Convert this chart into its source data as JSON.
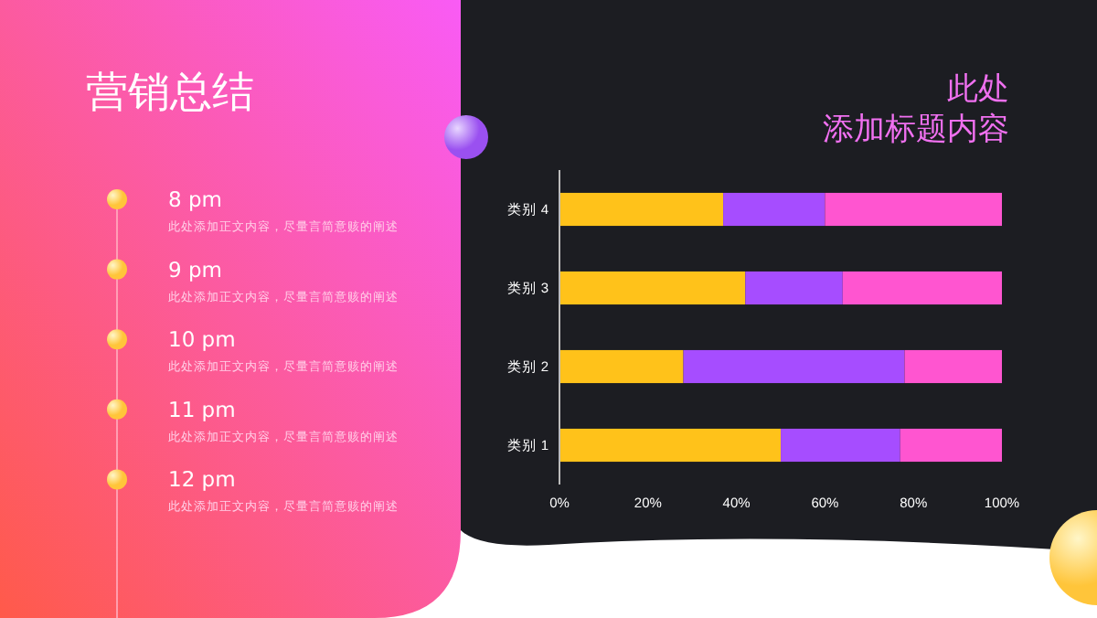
{
  "chart_data": {
    "type": "bar",
    "orientation": "horizontal",
    "stacked": true,
    "title": "此处",
    "subtitle": "添加标题内容",
    "annotations": [
      "营销总结",
      "8 pm",
      "此处添加正文内容，尽量言简意赅的阐述",
      "9 pm",
      "此处添加正文内容，尽量言简意赅的阐述",
      "10 pm",
      "此处添加正文内容，尽量言简意赅的阐述",
      "11 pm",
      "此处添加正文内容，尽量言简意赅的阐述",
      "12 pm",
      "此处添加正文内容，尽量言简意赅的阐述"
    ],
    "categories": [
      "类别 4",
      "类别 3",
      "类别 2",
      "类别 1"
    ],
    "series": [
      {
        "color": "#ffc21a",
        "values": [
          37,
          42,
          28,
          50
        ]
      },
      {
        "color": "#a64dff",
        "values": [
          23,
          22,
          50,
          27
        ]
      },
      {
        "color": "#ff55d0",
        "values": [
          40,
          36,
          22,
          23
        ]
      }
    ],
    "xlim": [
      0,
      100
    ],
    "xticks": [
      {
        "value": 0,
        "label": "0%"
      },
      {
        "value": 20,
        "label": "20%"
      },
      {
        "value": 40,
        "label": "40%"
      },
      {
        "value": 60,
        "label": "60%"
      },
      {
        "value": 80,
        "label": "80%"
      },
      {
        "value": 100,
        "label": "100%"
      }
    ],
    "grid": false
  }
}
